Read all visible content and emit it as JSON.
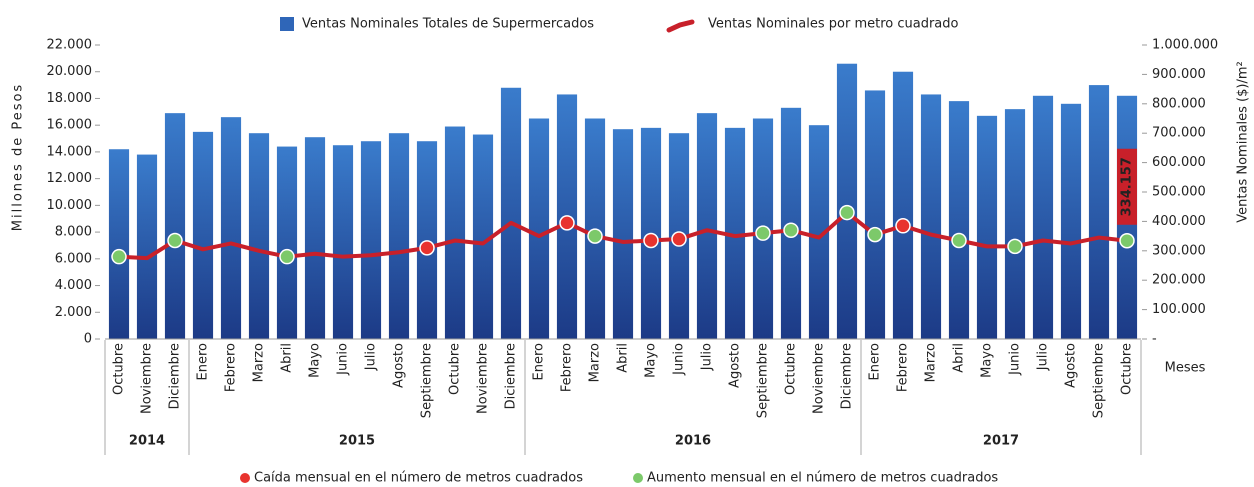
{
  "chart_data": {
    "type": "bar_line",
    "y_label": "Millones de Pesos",
    "y2_label": "Ventas Nominales ($)/m²",
    "x_label": "Meses",
    "categories": [
      "Octubre",
      "Noviembre",
      "Diciembre",
      "Enero",
      "Febrero",
      "Marzo",
      "Abril",
      "Mayo",
      "Junio",
      "Julio",
      "Agosto",
      "Septiembre",
      "Octubre",
      "Noviembre",
      "Diciembre",
      "Enero",
      "Febrero",
      "Marzo",
      "Abril",
      "Mayo",
      "Junio",
      "Julio",
      "Agosto",
      "Septiembre",
      "Octubre",
      "Noviembre",
      "Diciembre",
      "Enero",
      "Febrero",
      "Marzo",
      "Abril",
      "Mayo",
      "Junio",
      "Julio",
      "Agosto",
      "Septiembre",
      "Octubre"
    ],
    "year_groups": [
      {
        "label": "2014",
        "months": 3
      },
      {
        "label": "2015",
        "months": 12
      },
      {
        "label": "2016",
        "months": 12
      },
      {
        "label": "2017",
        "months": 10
      }
    ],
    "series": [
      {
        "name": "Ventas Nominales Totales de Supermercados",
        "color": "#2f66b8",
        "type": "bar",
        "values": [
          14200,
          13800,
          16900,
          15500,
          16600,
          15400,
          14400,
          15100,
          14500,
          14800,
          15400,
          14800,
          15900,
          15300,
          18800,
          16500,
          18300,
          16500,
          15700,
          15800,
          15400,
          16900,
          15800,
          16500,
          17300,
          16000,
          20600,
          18600,
          20000,
          18300,
          17800,
          16700,
          17200,
          18200,
          17600,
          19000,
          18200
        ]
      },
      {
        "name": "Ventas Nominales por metro cuadrado",
        "color": "#c8202a",
        "type": "line",
        "axis": "y2",
        "values": [
          280000,
          275000,
          335000,
          305000,
          325000,
          300000,
          280000,
          290000,
          280000,
          285000,
          295000,
          310000,
          335000,
          325000,
          395000,
          350000,
          395000,
          350000,
          330000,
          335000,
          340000,
          370000,
          350000,
          360000,
          370000,
          345000,
          430000,
          355000,
          385000,
          355000,
          335000,
          315000,
          315000,
          335000,
          325000,
          345000,
          334157
        ],
        "value_labels": [
          null,
          null,
          null,
          null,
          null,
          null,
          null,
          null,
          null,
          null,
          null,
          null,
          null,
          null,
          null,
          null,
          null,
          null,
          null,
          null,
          null,
          null,
          null,
          null,
          null,
          null,
          null,
          null,
          null,
          null,
          null,
          null,
          null,
          null,
          null,
          null,
          "334.157"
        ],
        "point_colors": [
          "#7cc96a",
          null,
          "#7cc96a",
          null,
          null,
          null,
          "#7cc96a",
          null,
          null,
          null,
          null,
          "#e8332e",
          null,
          null,
          null,
          null,
          "#e8332e",
          "#7cc96a",
          null,
          "#e8332e",
          "#e8332e",
          null,
          null,
          "#7cc96a",
          "#7cc96a",
          null,
          "#7cc96a",
          "#7cc96a",
          "#e8332e",
          null,
          "#7cc96a",
          null,
          "#7cc96a",
          null,
          null,
          null,
          "#7cc96a"
        ]
      }
    ],
    "marker_legend": [
      {
        "label": "Caída mensual en el número de metros cuadrados",
        "color": "#e8332e"
      },
      {
        "label": "Aumento  mensual en el número de metros cuadrados",
        "color": "#7cc96a"
      }
    ],
    "ylim": [
      0,
      22000
    ],
    "yticks": [
      0,
      {
        "value": 2000,
        "label": "2.000"
      },
      {
        "value": 4000,
        "label": "4.000"
      },
      {
        "value": 6000,
        "label": "6.000"
      },
      {
        "value": 8000,
        "label": "8.000"
      },
      {
        "value": 10000,
        "label": "10.000"
      },
      {
        "value": 12000,
        "label": "12.000"
      },
      {
        "value": 14000,
        "label": "14.000"
      },
      {
        "value": 16000,
        "label": "16.000"
      },
      {
        "value": 18000,
        "label": "18.000"
      },
      {
        "value": 20000,
        "label": "20.000"
      },
      {
        "value": 22000,
        "label": "22.000"
      }
    ],
    "y2lim": [
      0,
      1000000
    ],
    "y2ticks": [
      {
        "value": 0,
        "label": "-"
      },
      {
        "value": 100000,
        "label": "100.000"
      },
      {
        "value": 200000,
        "label": "200.000"
      },
      {
        "value": 300000,
        "label": "300.000"
      },
      {
        "value": 400000,
        "label": "400.000"
      },
      {
        "value": 500000,
        "label": "500.000"
      },
      {
        "value": 600000,
        "label": "600.000"
      },
      {
        "value": 700000,
        "label": "700.000"
      },
      {
        "value": 800000,
        "label": "800.000"
      },
      {
        "value": 900000,
        "label": "900.000"
      },
      {
        "value": 1000000,
        "label": "1.000.000"
      }
    ]
  }
}
